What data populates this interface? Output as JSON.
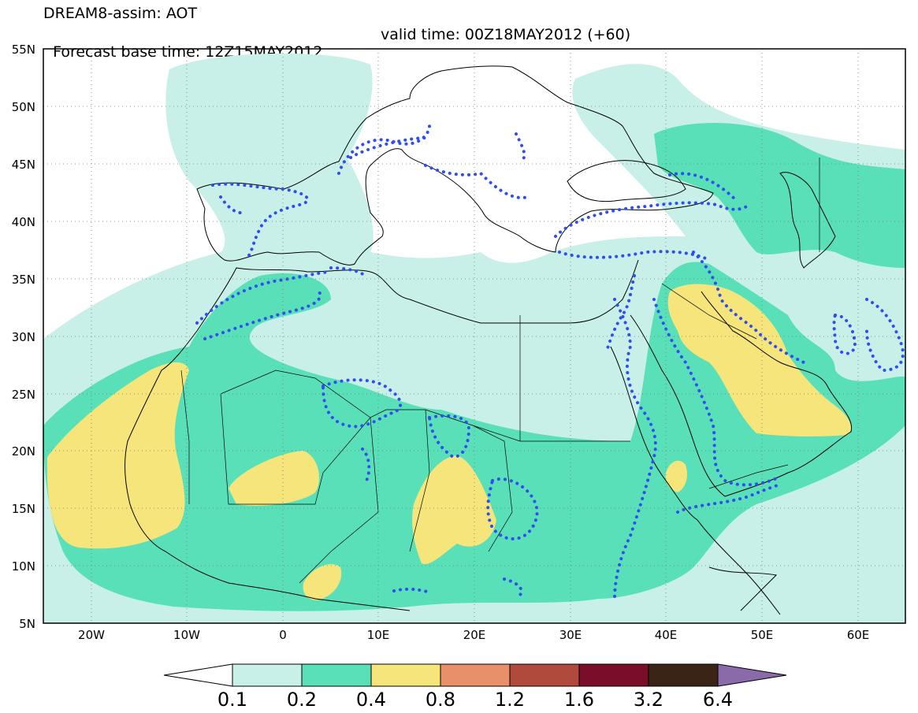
{
  "header": {
    "model_line": "DREAM8-assim: AOT",
    "base_time": "Forecast base time: 12Z15MAY2012",
    "valid_time": "valid time: 00Z18MAY2012 (+60)"
  },
  "map": {
    "lat_labels": [
      "55N",
      "50N",
      "45N",
      "40N",
      "35N",
      "30N",
      "25N",
      "20N",
      "15N",
      "10N",
      "5N"
    ],
    "lon_labels": [
      "20W",
      "10W",
      "0",
      "10E",
      "20E",
      "30E",
      "40E",
      "50E",
      "60E"
    ],
    "extent": {
      "lon_min": -25,
      "lon_max": 65,
      "lat_min": 5,
      "lat_max": 55
    }
  },
  "colorbar": {
    "levels": [
      "0.1",
      "0.2",
      "0.4",
      "0.8",
      "1.2",
      "1.6",
      "3.2",
      "6.4"
    ],
    "colors": [
      "#ffffff",
      "#c8f0e8",
      "#5ae0b8",
      "#f5e57a",
      "#e8906a",
      "#b04a3c",
      "#7a0e28",
      "#3a2416",
      "#8a6aa8"
    ]
  }
}
